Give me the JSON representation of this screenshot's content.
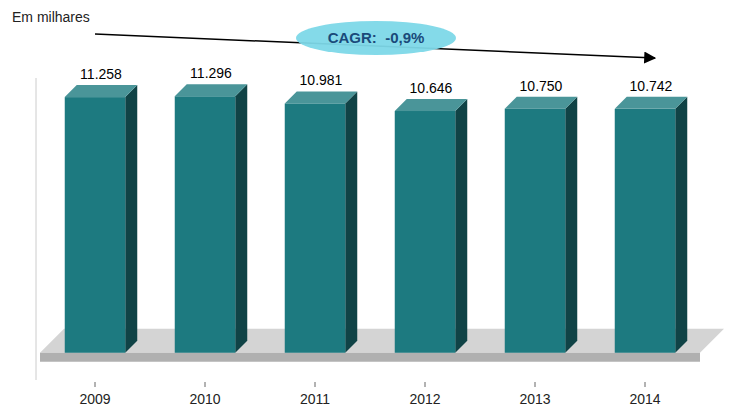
{
  "chart_data": {
    "type": "bar",
    "subtitle": "Em milhares",
    "categories": [
      "2009",
      "2010",
      "2011",
      "2012",
      "2013",
      "2014"
    ],
    "values": [
      11258,
      11296,
      10981,
      10646,
      10750,
      10742
    ],
    "value_labels": [
      "11.258",
      "11.296",
      "10.981",
      "10.646",
      "10.750",
      "10.742"
    ],
    "data_labels": true,
    "color": "#1d7a80",
    "ylim": [
      -1200,
      12100
    ],
    "tick_labels": "x",
    "annotations": [
      "CAGR:  -0,9%"
    ]
  }
}
